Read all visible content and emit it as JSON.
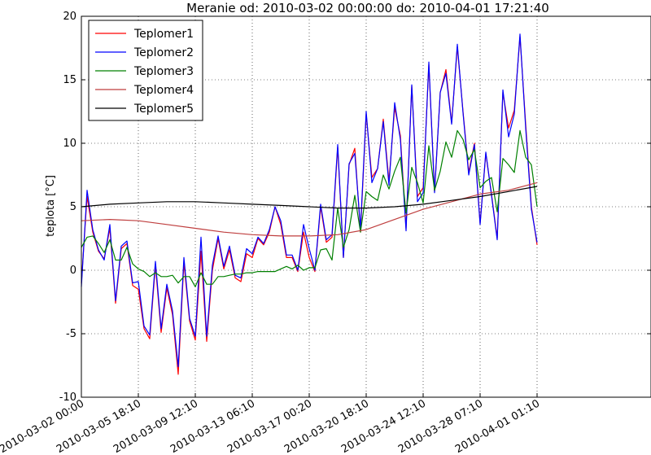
{
  "chart_data": {
    "type": "line",
    "title": "Meranie od: 2010-03-02 00:00:00 do: 2010-04-01 17:21:40",
    "xlabel": "",
    "ylabel": "teplota [°C]",
    "ylim": [
      -10,
      20
    ],
    "yticks": [
      -10,
      -5,
      0,
      5,
      10,
      15,
      20
    ],
    "xticks": [
      "2010-03-02 00:00",
      "2010-03-05 18:10",
      "2010-03-09 12:10",
      "2010-03-13 06:10",
      "2010-03-17 00:20",
      "2010-03-20 18:10",
      "2010-03-24 12:10",
      "2010-03-28 07:10",
      "2010-04-01 01:10"
    ],
    "grid": true,
    "legend_position": "top-left",
    "series": [
      {
        "name": "Teplomer1",
        "color": "#ff0000",
        "points": [
          [
            0.0,
            -1.0
          ],
          [
            0.01,
            5.8
          ],
          [
            0.02,
            3.0
          ],
          [
            0.03,
            1.5
          ],
          [
            0.04,
            0.9
          ],
          [
            0.05,
            3.3
          ],
          [
            0.06,
            -2.6
          ],
          [
            0.07,
            1.7
          ],
          [
            0.08,
            2.1
          ],
          [
            0.09,
            -1.2
          ],
          [
            0.1,
            -1.5
          ],
          [
            0.11,
            -4.6
          ],
          [
            0.12,
            -5.4
          ],
          [
            0.13,
            0.4
          ],
          [
            0.14,
            -4.9
          ],
          [
            0.15,
            -1.4
          ],
          [
            0.16,
            -3.5
          ],
          [
            0.17,
            -8.2
          ],
          [
            0.18,
            0.6
          ],
          [
            0.19,
            -4.0
          ],
          [
            0.2,
            -5.5
          ],
          [
            0.21,
            1.5
          ],
          [
            0.22,
            -5.6
          ],
          [
            0.23,
            0.0
          ],
          [
            0.24,
            2.5
          ],
          [
            0.25,
            0.1
          ],
          [
            0.26,
            1.6
          ],
          [
            0.27,
            -0.6
          ],
          [
            0.28,
            -0.9
          ],
          [
            0.29,
            1.3
          ],
          [
            0.3,
            1.0
          ],
          [
            0.31,
            2.5
          ],
          [
            0.32,
            2.0
          ],
          [
            0.33,
            3.0
          ],
          [
            0.34,
            5.0
          ],
          [
            0.35,
            3.6
          ],
          [
            0.36,
            1.0
          ],
          [
            0.37,
            1.0
          ],
          [
            0.38,
            -0.1
          ],
          [
            0.39,
            3.0
          ],
          [
            0.4,
            1.0
          ],
          [
            0.41,
            -0.1
          ],
          [
            0.42,
            5.0
          ],
          [
            0.43,
            2.2
          ],
          [
            0.44,
            2.6
          ],
          [
            0.45,
            9.7
          ],
          [
            0.46,
            1.0
          ],
          [
            0.47,
            8.3
          ],
          [
            0.48,
            9.6
          ],
          [
            0.49,
            3.0
          ],
          [
            0.5,
            12.3
          ],
          [
            0.51,
            7.3
          ],
          [
            0.52,
            8.0
          ],
          [
            0.53,
            11.9
          ],
          [
            0.54,
            7.0
          ],
          [
            0.55,
            12.8
          ],
          [
            0.56,
            10.6
          ],
          [
            0.57,
            3.3
          ],
          [
            0.58,
            14.5
          ],
          [
            0.59,
            5.8
          ],
          [
            0.6,
            6.5
          ],
          [
            0.61,
            16.2
          ],
          [
            0.62,
            6.2
          ],
          [
            0.63,
            14.0
          ],
          [
            0.64,
            15.8
          ],
          [
            0.65,
            11.6
          ],
          [
            0.66,
            17.6
          ],
          [
            0.67,
            12.5
          ],
          [
            0.68,
            7.7
          ],
          [
            0.69,
            10.0
          ],
          [
            0.7,
            3.7
          ],
          [
            0.71,
            9.2
          ],
          [
            0.72,
            6.0
          ],
          [
            0.73,
            2.5
          ],
          [
            0.74,
            14.0
          ],
          [
            0.75,
            11.2
          ],
          [
            0.76,
            12.6
          ],
          [
            0.77,
            18.4
          ],
          [
            0.78,
            11.5
          ],
          [
            0.79,
            5.0
          ],
          [
            0.8,
            2.0
          ]
        ]
      },
      {
        "name": "Teplomer2",
        "color": "#0000ff",
        "points": [
          [
            0.0,
            -1.3
          ],
          [
            0.01,
            6.3
          ],
          [
            0.02,
            3.2
          ],
          [
            0.03,
            1.6
          ],
          [
            0.04,
            0.8
          ],
          [
            0.05,
            3.6
          ],
          [
            0.06,
            -2.4
          ],
          [
            0.07,
            1.9
          ],
          [
            0.08,
            2.3
          ],
          [
            0.09,
            -1.0
          ],
          [
            0.1,
            -0.9
          ],
          [
            0.11,
            -4.4
          ],
          [
            0.12,
            -5.1
          ],
          [
            0.13,
            0.7
          ],
          [
            0.14,
            -4.6
          ],
          [
            0.15,
            -1.1
          ],
          [
            0.16,
            -3.2
          ],
          [
            0.17,
            -7.6
          ],
          [
            0.18,
            1.0
          ],
          [
            0.19,
            -3.8
          ],
          [
            0.2,
            -5.2
          ],
          [
            0.21,
            2.6
          ],
          [
            0.22,
            -5.2
          ],
          [
            0.23,
            0.4
          ],
          [
            0.24,
            2.7
          ],
          [
            0.25,
            0.3
          ],
          [
            0.26,
            1.9
          ],
          [
            0.27,
            -0.4
          ],
          [
            0.28,
            -0.6
          ],
          [
            0.29,
            1.7
          ],
          [
            0.3,
            1.3
          ],
          [
            0.31,
            2.6
          ],
          [
            0.32,
            2.1
          ],
          [
            0.33,
            3.2
          ],
          [
            0.34,
            5.0
          ],
          [
            0.35,
            3.9
          ],
          [
            0.36,
            1.2
          ],
          [
            0.37,
            1.2
          ],
          [
            0.38,
            0.0
          ],
          [
            0.39,
            3.6
          ],
          [
            0.4,
            1.7
          ],
          [
            0.41,
            0.0
          ],
          [
            0.42,
            5.2
          ],
          [
            0.43,
            2.4
          ],
          [
            0.44,
            2.8
          ],
          [
            0.45,
            9.9
          ],
          [
            0.46,
            1.0
          ],
          [
            0.47,
            8.4
          ],
          [
            0.48,
            9.2
          ],
          [
            0.49,
            3.3
          ],
          [
            0.5,
            12.5
          ],
          [
            0.51,
            6.9
          ],
          [
            0.52,
            8.0
          ],
          [
            0.53,
            11.7
          ],
          [
            0.54,
            6.7
          ],
          [
            0.55,
            13.2
          ],
          [
            0.56,
            10.3
          ],
          [
            0.57,
            3.1
          ],
          [
            0.58,
            14.6
          ],
          [
            0.59,
            5.4
          ],
          [
            0.6,
            6.1
          ],
          [
            0.61,
            16.4
          ],
          [
            0.62,
            6.1
          ],
          [
            0.63,
            14.0
          ],
          [
            0.64,
            15.5
          ],
          [
            0.65,
            11.5
          ],
          [
            0.66,
            17.8
          ],
          [
            0.67,
            12.4
          ],
          [
            0.68,
            7.5
          ],
          [
            0.69,
            9.9
          ],
          [
            0.7,
            3.6
          ],
          [
            0.71,
            9.3
          ],
          [
            0.72,
            5.9
          ],
          [
            0.73,
            2.4
          ],
          [
            0.74,
            14.2
          ],
          [
            0.75,
            10.5
          ],
          [
            0.76,
            12.3
          ],
          [
            0.77,
            18.6
          ],
          [
            0.78,
            11.2
          ],
          [
            0.79,
            4.8
          ],
          [
            0.8,
            2.2
          ]
        ]
      },
      {
        "name": "Teplomer3",
        "color": "#008000",
        "points": [
          [
            0.0,
            1.8
          ],
          [
            0.01,
            2.6
          ],
          [
            0.02,
            2.7
          ],
          [
            0.03,
            2.1
          ],
          [
            0.04,
            1.4
          ],
          [
            0.05,
            2.4
          ],
          [
            0.06,
            0.8
          ],
          [
            0.07,
            0.8
          ],
          [
            0.08,
            1.8
          ],
          [
            0.09,
            0.5
          ],
          [
            0.1,
            0.1
          ],
          [
            0.11,
            -0.1
          ],
          [
            0.12,
            -0.5
          ],
          [
            0.13,
            -0.2
          ],
          [
            0.14,
            -0.5
          ],
          [
            0.15,
            -0.5
          ],
          [
            0.16,
            -0.4
          ],
          [
            0.17,
            -1.0
          ],
          [
            0.18,
            -0.5
          ],
          [
            0.19,
            -0.5
          ],
          [
            0.2,
            -1.3
          ],
          [
            0.21,
            -0.2
          ],
          [
            0.22,
            -1.1
          ],
          [
            0.23,
            -1.1
          ],
          [
            0.24,
            -0.5
          ],
          [
            0.25,
            -0.5
          ],
          [
            0.26,
            -0.4
          ],
          [
            0.27,
            -0.3
          ],
          [
            0.28,
            -0.3
          ],
          [
            0.29,
            -0.2
          ],
          [
            0.3,
            -0.2
          ],
          [
            0.31,
            -0.1
          ],
          [
            0.32,
            -0.1
          ],
          [
            0.33,
            -0.1
          ],
          [
            0.34,
            -0.1
          ],
          [
            0.35,
            0.1
          ],
          [
            0.36,
            0.3
          ],
          [
            0.37,
            0.1
          ],
          [
            0.38,
            0.4
          ],
          [
            0.39,
            0.0
          ],
          [
            0.4,
            0.2
          ],
          [
            0.41,
            0.2
          ],
          [
            0.42,
            1.6
          ],
          [
            0.43,
            1.7
          ],
          [
            0.44,
            0.8
          ],
          [
            0.45,
            4.9
          ],
          [
            0.46,
            1.8
          ],
          [
            0.47,
            3.2
          ],
          [
            0.48,
            5.9
          ],
          [
            0.49,
            3.0
          ],
          [
            0.5,
            6.2
          ],
          [
            0.51,
            5.8
          ],
          [
            0.52,
            5.5
          ],
          [
            0.53,
            7.5
          ],
          [
            0.54,
            6.4
          ],
          [
            0.55,
            7.8
          ],
          [
            0.56,
            8.9
          ],
          [
            0.57,
            4.5
          ],
          [
            0.58,
            8.1
          ],
          [
            0.59,
            6.9
          ],
          [
            0.6,
            5.3
          ],
          [
            0.61,
            9.8
          ],
          [
            0.62,
            6.3
          ],
          [
            0.63,
            7.8
          ],
          [
            0.64,
            10.1
          ],
          [
            0.65,
            8.9
          ],
          [
            0.66,
            11.0
          ],
          [
            0.67,
            10.3
          ],
          [
            0.68,
            8.7
          ],
          [
            0.69,
            9.5
          ],
          [
            0.7,
            6.5
          ],
          [
            0.71,
            7.0
          ],
          [
            0.72,
            7.3
          ],
          [
            0.73,
            4.6
          ],
          [
            0.74,
            8.8
          ],
          [
            0.75,
            8.3
          ],
          [
            0.76,
            7.7
          ],
          [
            0.77,
            11.0
          ],
          [
            0.78,
            8.9
          ],
          [
            0.79,
            8.3
          ],
          [
            0.8,
            5.0
          ]
        ]
      },
      {
        "name": "Teplomer4",
        "color": "#bf3f3f",
        "points": [
          [
            0.0,
            3.9
          ],
          [
            0.05,
            4.0
          ],
          [
            0.1,
            3.9
          ],
          [
            0.15,
            3.6
          ],
          [
            0.2,
            3.3
          ],
          [
            0.25,
            3.0
          ],
          [
            0.3,
            2.8
          ],
          [
            0.35,
            2.7
          ],
          [
            0.4,
            2.7
          ],
          [
            0.45,
            2.8
          ],
          [
            0.5,
            3.2
          ],
          [
            0.55,
            4.0
          ],
          [
            0.6,
            4.8
          ],
          [
            0.65,
            5.4
          ],
          [
            0.7,
            6.0
          ],
          [
            0.75,
            6.3
          ],
          [
            0.8,
            6.9
          ]
        ]
      },
      {
        "name": "Teplomer5",
        "color": "#000000",
        "points": [
          [
            0.0,
            5.0
          ],
          [
            0.05,
            5.2
          ],
          [
            0.1,
            5.3
          ],
          [
            0.15,
            5.4
          ],
          [
            0.2,
            5.4
          ],
          [
            0.25,
            5.3
          ],
          [
            0.3,
            5.2
          ],
          [
            0.35,
            5.1
          ],
          [
            0.4,
            5.0
          ],
          [
            0.45,
            4.9
          ],
          [
            0.5,
            4.9
          ],
          [
            0.55,
            5.0
          ],
          [
            0.6,
            5.2
          ],
          [
            0.65,
            5.5
          ],
          [
            0.7,
            5.8
          ],
          [
            0.75,
            6.2
          ],
          [
            0.8,
            6.6
          ]
        ]
      }
    ]
  }
}
